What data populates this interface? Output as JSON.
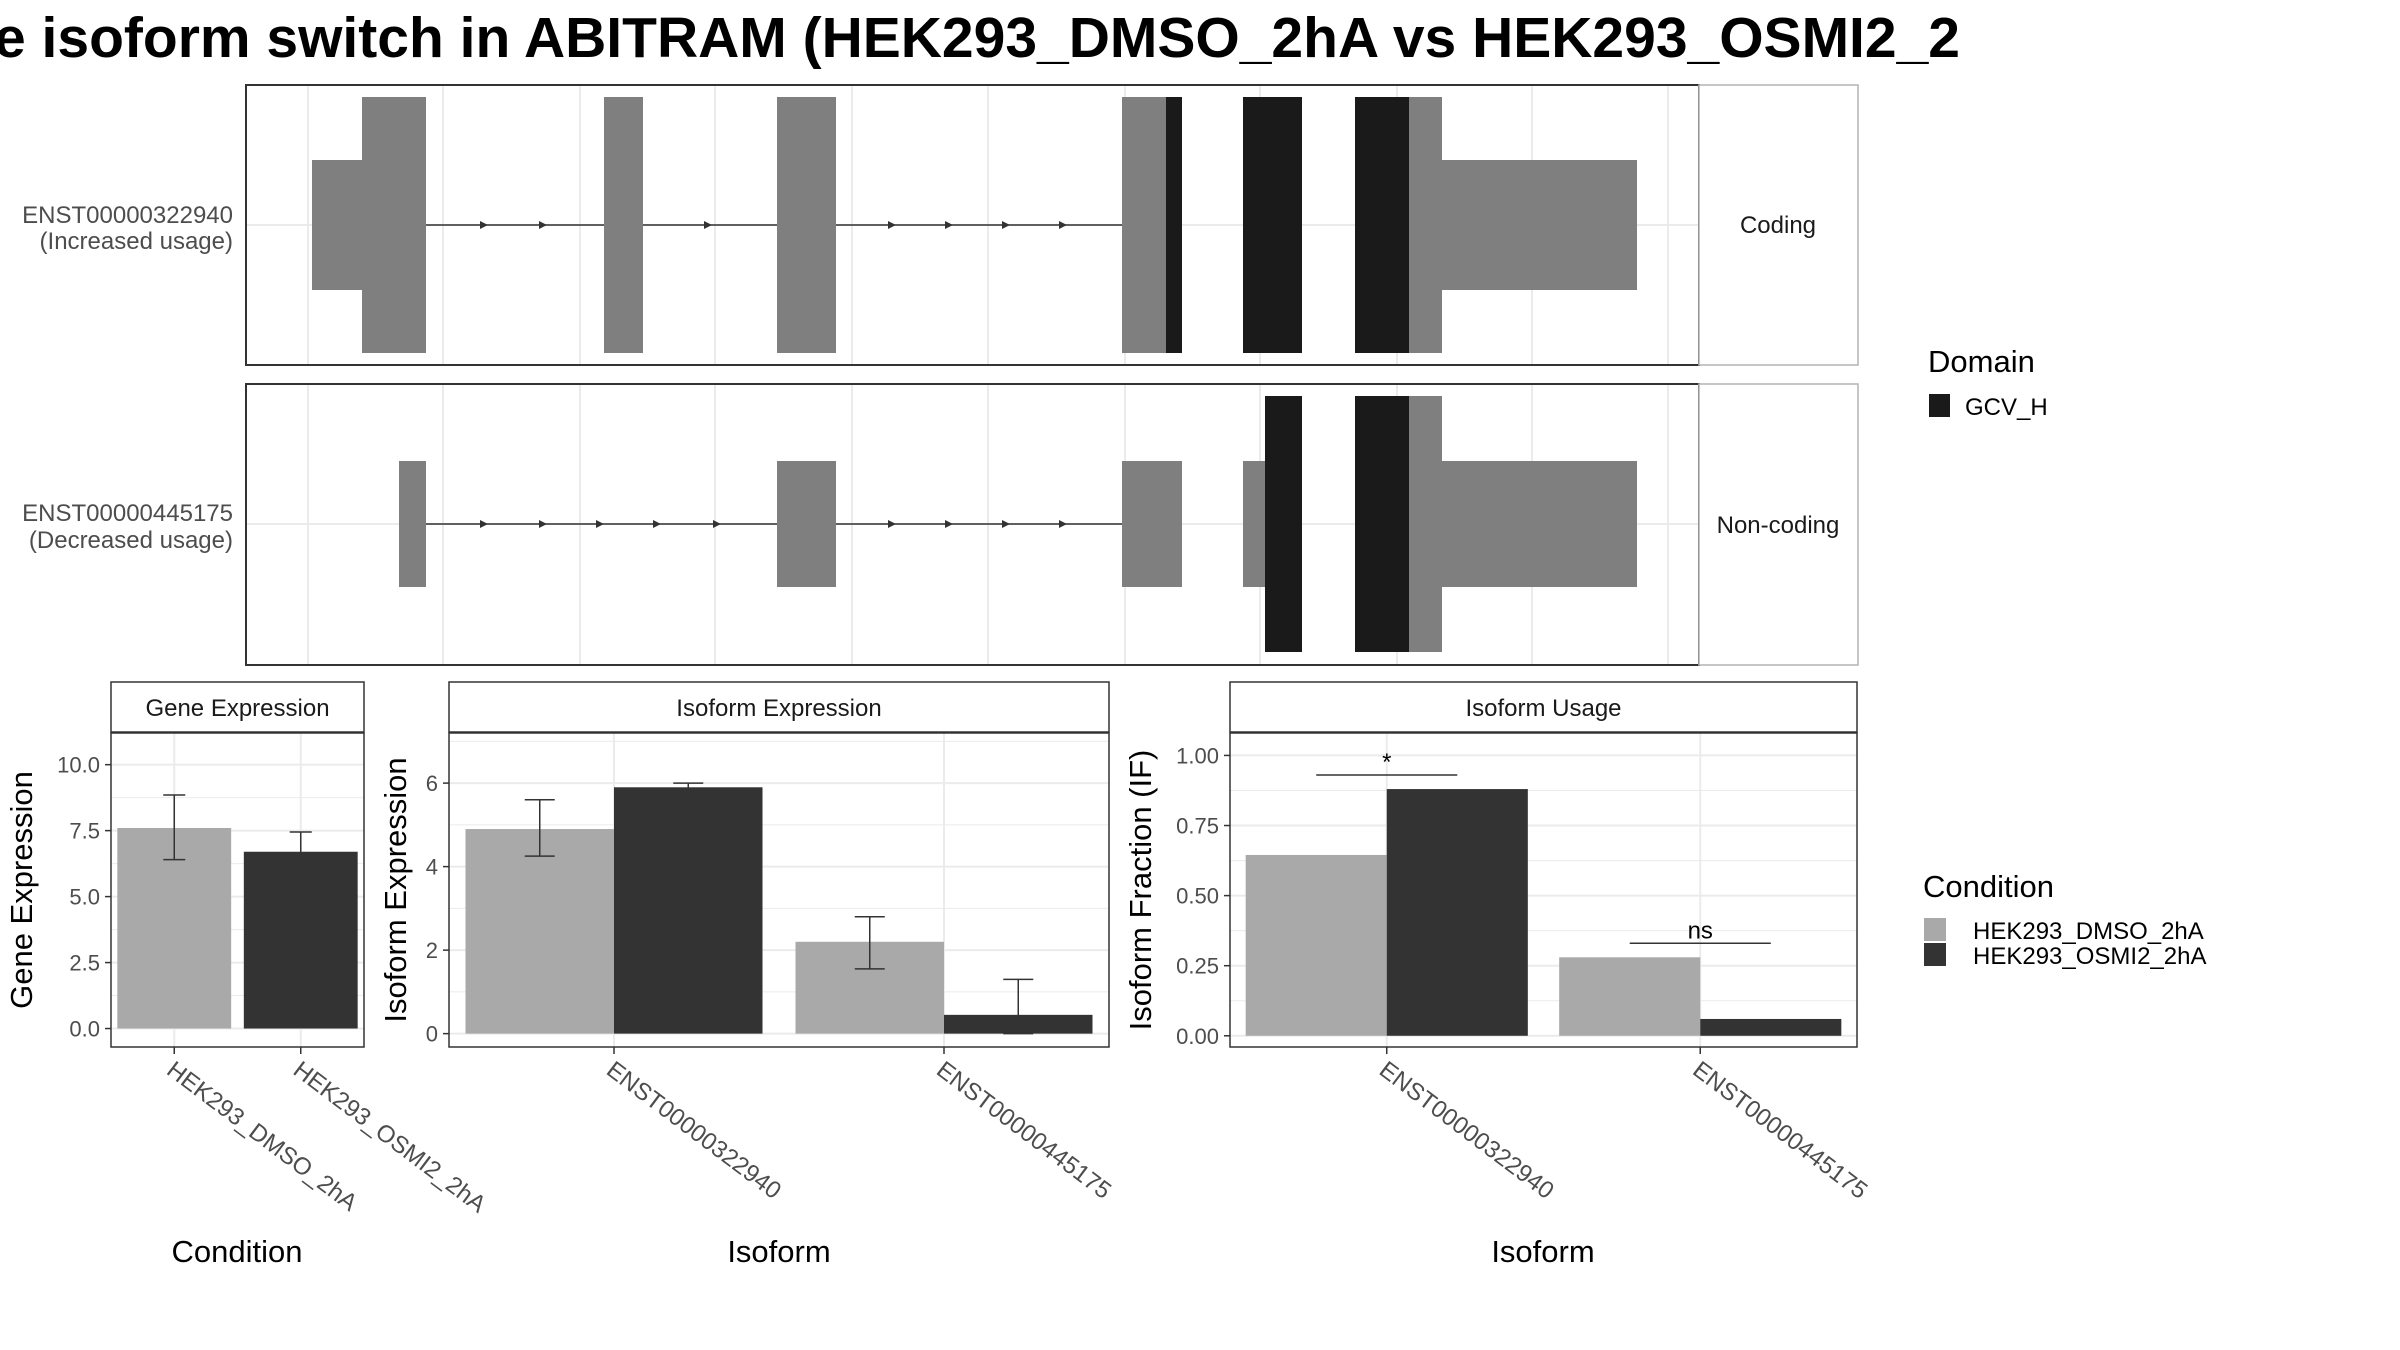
{
  "title": "e isoform switch in ABITRAM (HEK293_DMSO_2hA vs HEK293_OSMI2_2",
  "colors": {
    "dmso": "#a9a9a9",
    "osmi": "#333333",
    "exon": "#7f7f7f",
    "domain": "#1a1a1a",
    "grid": "#ebebeb",
    "strip_fill": "#ffffff",
    "panel_border": "#333333"
  },
  "transcripts": {
    "rows": [
      {
        "line1": "ENST00000322940",
        "line2": "(Increased usage)",
        "strip": "Coding"
      },
      {
        "line1": "ENST00000445175",
        "line2": "(Decreased usage)",
        "strip": "Non-coding"
      }
    ]
  },
  "domain_legend": {
    "title": "Domain",
    "items": [
      {
        "label": "GCV_H",
        "color": "#1a1a1a"
      }
    ]
  },
  "condition_legend": {
    "title": "Condition",
    "items": [
      {
        "label": "HEK293_DMSO_2hA",
        "color": "#a9a9a9"
      },
      {
        "label": "HEK293_OSMI2_2hA",
        "color": "#333333"
      }
    ]
  },
  "chart_data": [
    {
      "type": "bar",
      "strip": "Gene Expression",
      "xlabel": "Condition",
      "ylabel": "Gene Expression",
      "categories": [
        "HEK293_DMSO_2hA",
        "HEK293_OSMI2_2hA"
      ],
      "values": [
        7.6,
        6.7
      ],
      "err_low": [
        6.4,
        6.0
      ],
      "err_high": [
        8.85,
        7.45
      ],
      "ylim": [
        -0.7,
        11.2
      ],
      "yticks": [
        0,
        2.5,
        5,
        7.5,
        10
      ],
      "ytick_labels": [
        "0.0",
        "2.5",
        "5.0",
        "7.5",
        "10.0"
      ]
    },
    {
      "type": "bar",
      "strip": "Isoform Expression",
      "xlabel": "Isoform",
      "ylabel": "Isoform Expression",
      "categories": [
        "ENST00000322940",
        "ENST00000445175"
      ],
      "series": [
        {
          "name": "HEK293_DMSO_2hA",
          "values": [
            4.9,
            2.2
          ],
          "err_low": [
            4.25,
            1.55
          ],
          "err_high": [
            5.6,
            2.8
          ]
        },
        {
          "name": "HEK293_OSMI2_2hA",
          "values": [
            5.9,
            0.45
          ],
          "err_low": [
            5.8,
            0.0
          ],
          "err_high": [
            6.0,
            1.3
          ]
        }
      ],
      "ylim": [
        -0.32,
        7.2
      ],
      "yticks": [
        0,
        2,
        4,
        6
      ],
      "ytick_labels": [
        "0",
        "2",
        "4",
        "6"
      ]
    },
    {
      "type": "bar",
      "strip": "Isoform Usage",
      "xlabel": "Isoform",
      "ylabel": "Isoform Fraction (IF)",
      "categories": [
        "ENST00000322940",
        "ENST00000445175"
      ],
      "series": [
        {
          "name": "HEK293_DMSO_2hA",
          "values": [
            0.645,
            0.28
          ]
        },
        {
          "name": "HEK293_OSMI2_2hA",
          "values": [
            0.88,
            0.06
          ]
        }
      ],
      "significance": [
        "*",
        "ns"
      ],
      "sig_level": [
        0.93,
        0.33
      ],
      "ylim": [
        -0.04,
        1.08
      ],
      "yticks": [
        0,
        0.25,
        0.5,
        0.75,
        1.0
      ],
      "ytick_labels": [
        "0.00",
        "0.25",
        "0.50",
        "0.75",
        "1.00"
      ]
    }
  ]
}
